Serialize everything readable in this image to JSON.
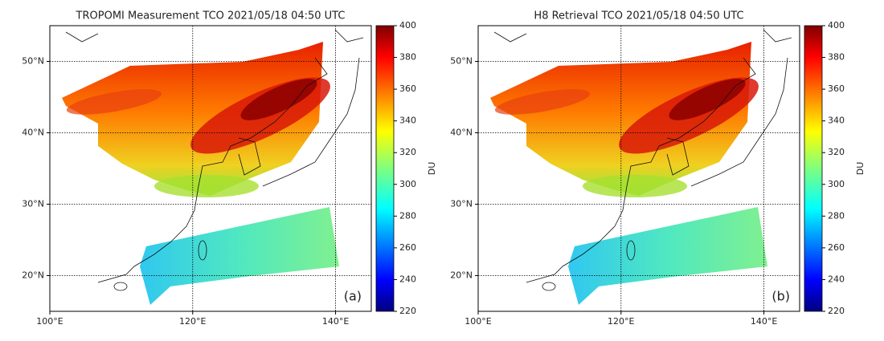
{
  "panels": [
    {
      "title": "TROPOMI Measurement TCO 2021/05/18 04:50 UTC",
      "label": "(a)",
      "xlim": [
        100,
        145
      ],
      "ylim": [
        15,
        55
      ],
      "xticks": [
        {
          "value": 100,
          "label": "100°E"
        },
        {
          "value": 120,
          "label": "120°E"
        },
        {
          "value": 140,
          "label": "140°E"
        }
      ],
      "yticks": [
        {
          "value": 20,
          "label": "20°N"
        },
        {
          "value": 30,
          "label": "30°N"
        },
        {
          "value": 40,
          "label": "40°N"
        },
        {
          "value": 50,
          "label": "50°N"
        }
      ],
      "colorbar": {
        "label": "DU",
        "lim": [
          220,
          400
        ],
        "ticks": [
          220,
          240,
          260,
          280,
          300,
          320,
          340,
          360,
          380,
          400
        ]
      }
    },
    {
      "title": "H8 Retrieval TCO 2021/05/18 04:50 UTC",
      "label": "(b)",
      "xlim": [
        100,
        145
      ],
      "ylim": [
        15,
        55
      ],
      "xticks": [
        {
          "value": 100,
          "label": "100°E"
        },
        {
          "value": 120,
          "label": "120°E"
        },
        {
          "value": 140,
          "label": "140°E"
        }
      ],
      "yticks": [
        {
          "value": 20,
          "label": "20°N"
        },
        {
          "value": 30,
          "label": "30°N"
        },
        {
          "value": 40,
          "label": "40°N"
        },
        {
          "value": 50,
          "label": "50°N"
        }
      ],
      "colorbar": {
        "label": "DU",
        "lim": [
          220,
          400
        ],
        "ticks": [
          220,
          240,
          260,
          280,
          300,
          320,
          340,
          360,
          380,
          400
        ]
      }
    }
  ]
}
